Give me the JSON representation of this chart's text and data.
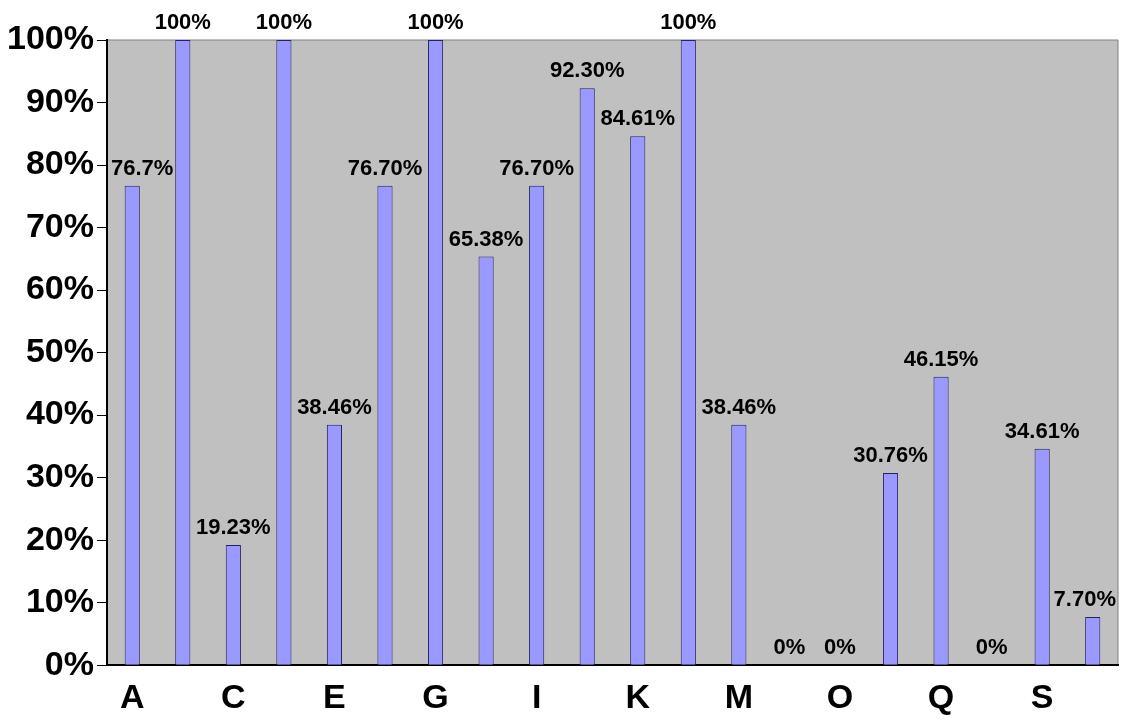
{
  "chart_data": {
    "type": "bar",
    "categories": [
      "A",
      null,
      "C",
      null,
      "E",
      null,
      "G",
      null,
      "I",
      null,
      "K",
      null,
      "M",
      null,
      "O",
      null,
      "Q",
      null,
      "S",
      null
    ],
    "values": [
      76.7,
      100,
      19.23,
      100,
      38.46,
      76.7,
      100,
      65.38,
      76.7,
      92.3,
      84.61,
      100,
      38.46,
      0,
      0,
      30.76,
      46.15,
      0,
      34.61,
      7.7
    ],
    "value_labels": [
      "76.7%",
      "100%",
      "19.23%",
      "100%",
      "38.46%",
      "76.70%",
      "100%",
      "65.38%",
      "76.70%",
      "92.30%",
      "84.61%",
      "100%",
      "38.46%",
      "0%",
      "0%",
      "30.76%",
      "46.15%",
      "0%",
      "34.61%",
      "7.70%"
    ],
    "color": "#9999ff",
    "ylim": [
      0,
      100
    ],
    "yticks": [
      {
        "value": 0,
        "label": "0%"
      },
      {
        "value": 10,
        "label": "10%"
      },
      {
        "value": 20,
        "label": "20%"
      },
      {
        "value": 30,
        "label": "30%"
      },
      {
        "value": 40,
        "label": "40%"
      },
      {
        "value": 50,
        "label": "50%"
      },
      {
        "value": 60,
        "label": "60%"
      },
      {
        "value": 70,
        "label": "70%"
      },
      {
        "value": 80,
        "label": "80%"
      },
      {
        "value": 90,
        "label": "90%"
      },
      {
        "value": 100,
        "label": "100%"
      }
    ],
    "grid": false
  }
}
